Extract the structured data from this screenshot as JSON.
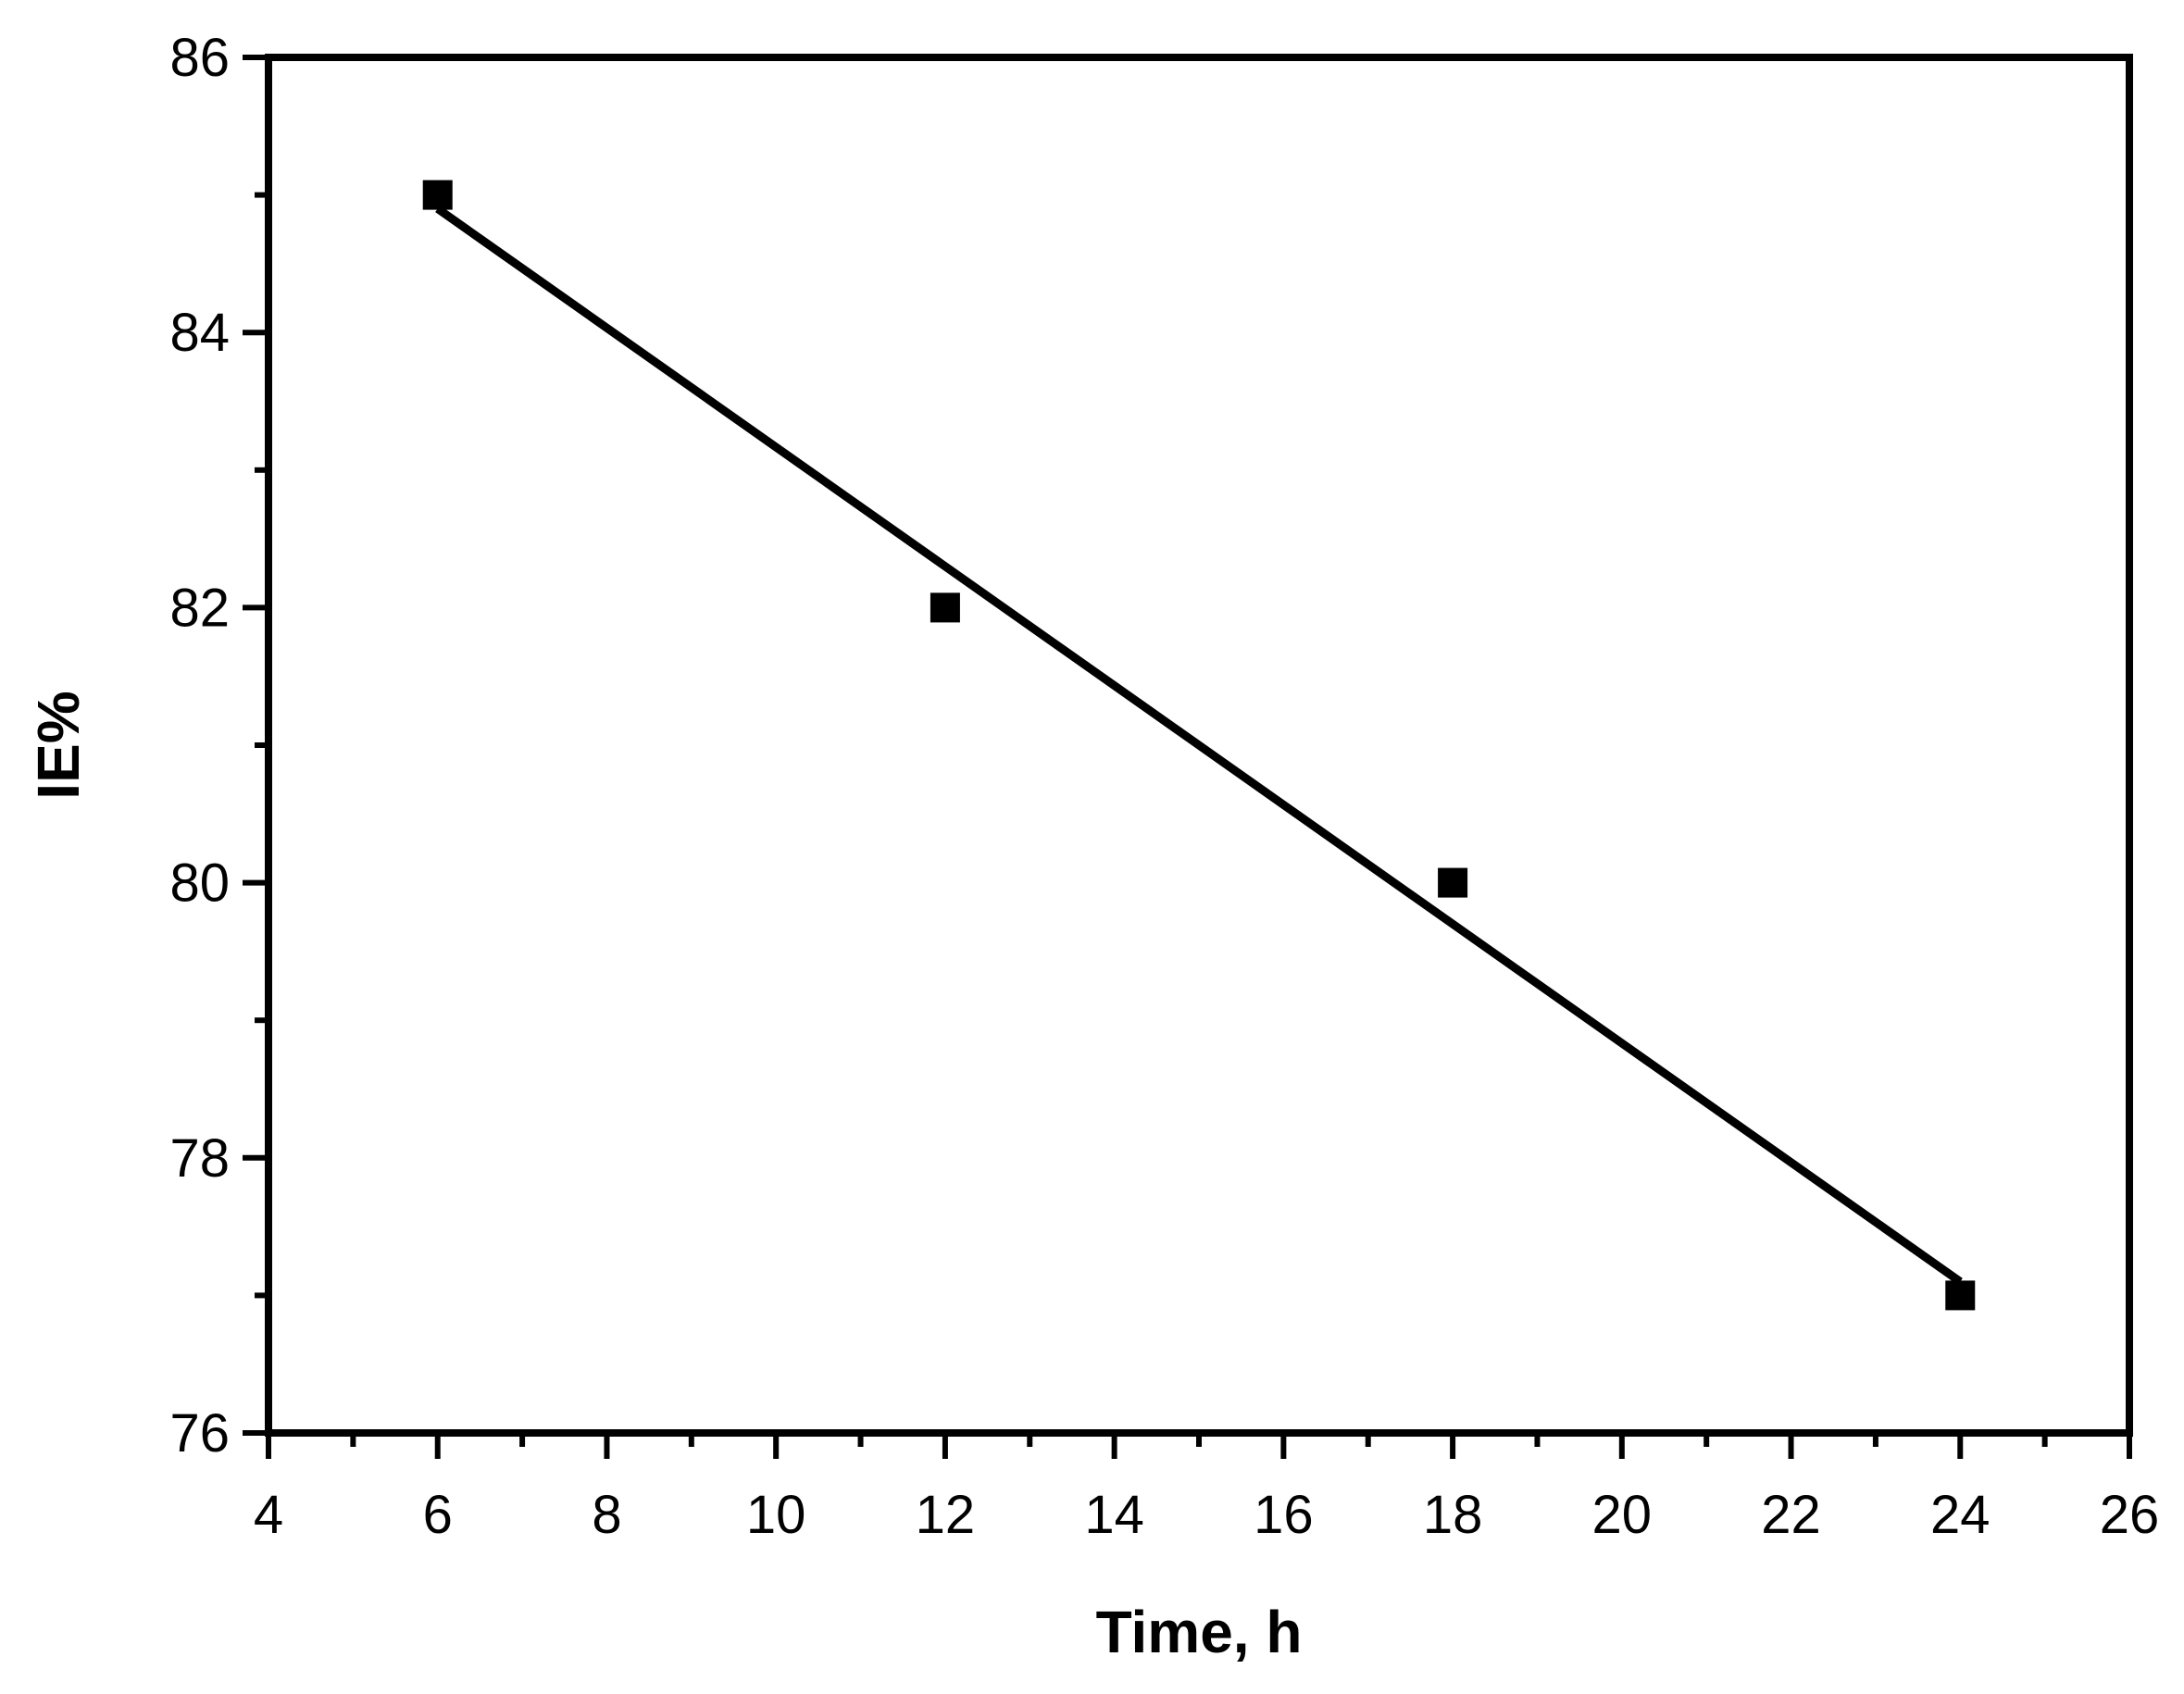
{
  "chart_data": {
    "type": "scatter",
    "title": "",
    "xlabel": "Time, h",
    "ylabel": "IE%",
    "xlim": [
      4,
      26
    ],
    "ylim": [
      76,
      86
    ],
    "x_ticks": [
      4,
      6,
      8,
      10,
      12,
      14,
      16,
      18,
      20,
      22,
      24,
      26
    ],
    "y_ticks": [
      76,
      78,
      80,
      82,
      84,
      86
    ],
    "x_tick_labels": [
      "4",
      "6",
      "8",
      "10",
      "12",
      "14",
      "16",
      "18",
      "20",
      "22",
      "24",
      "26"
    ],
    "y_tick_labels": [
      "76",
      "78",
      "80",
      "82",
      "84",
      "86"
    ],
    "x_minor_step": 1,
    "y_minor_step": 1,
    "grid": false,
    "legend": "none",
    "marker": "square",
    "colors": {
      "marker": "#000000",
      "line": "#000000",
      "axis": "#000000"
    },
    "series": [
      {
        "x": [
          6,
          12,
          18,
          24
        ],
        "y": [
          85,
          82,
          80,
          77
        ]
      }
    ],
    "fit_line": {
      "type": "linear",
      "x": [
        6,
        24
      ],
      "y": [
        84.9,
        77.1
      ]
    }
  }
}
